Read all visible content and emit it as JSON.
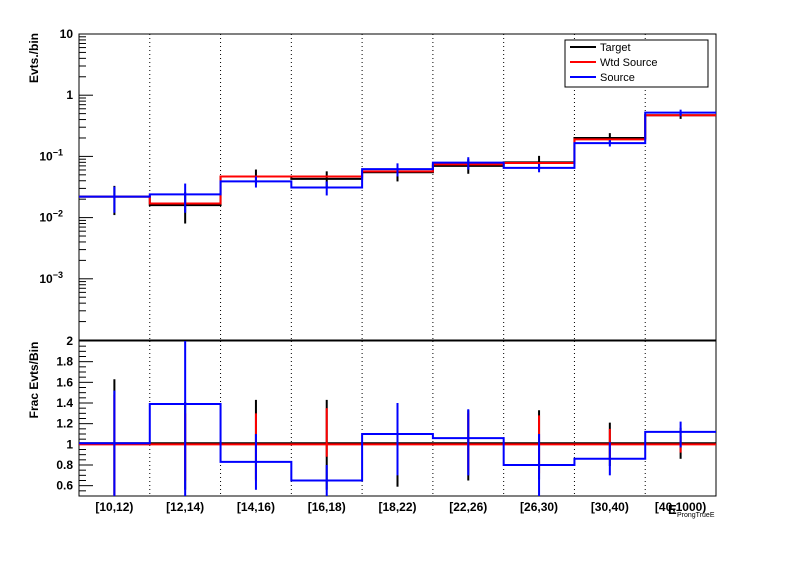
{
  "chart_data": [
    {
      "type": "line",
      "style": "step-histogram",
      "ylabel": "Evts./bin",
      "yscale": "log",
      "ylim": [
        0.0001,
        10
      ],
      "yticks": [
        {
          "value": 10,
          "label": "10"
        },
        {
          "value": 1,
          "label": "1"
        },
        {
          "value": 0.1,
          "label": "10",
          "exp": "−1"
        },
        {
          "value": 0.01,
          "label": "10",
          "exp": "−2"
        },
        {
          "value": 0.001,
          "label": "10",
          "exp": "−3"
        }
      ],
      "categories": [
        "[10,12)",
        "[12,14)",
        "[14,16)",
        "[16,18)",
        "[18,22)",
        "[22,26)",
        "[26,30)",
        "[30,40)",
        "[40,1000)"
      ],
      "legend_position": "top-right",
      "grid": "vertical dotted at bin edges",
      "series": [
        {
          "name": "Target",
          "color": "#000000",
          "values": [
            0.022,
            0.016,
            0.047,
            0.043,
            0.055,
            0.07,
            0.08,
            0.2,
            0.47
          ],
          "err_low": [
            0.011,
            0.008,
            0.012,
            0.013,
            0.016,
            0.018,
            0.02,
            0.04,
            0.06
          ],
          "err_high": [
            0.011,
            0.01,
            0.014,
            0.014,
            0.018,
            0.02,
            0.022,
            0.04,
            0.06
          ]
        },
        {
          "name": "Wtd Source",
          "color": "#ff0000",
          "values": [
            0.022,
            0.017,
            0.047,
            0.047,
            0.057,
            0.074,
            0.078,
            0.19,
            0.47
          ]
        },
        {
          "name": "Source",
          "color": "#0000ff",
          "values": [
            0.022,
            0.024,
            0.039,
            0.031,
            0.062,
            0.079,
            0.065,
            0.165,
            0.52
          ],
          "err_low": [
            0.01,
            0.012,
            0.008,
            0.008,
            0.015,
            0.018,
            0.01,
            0.02,
            0.06
          ],
          "err_high": [
            0.01,
            0.012,
            0.008,
            0.008,
            0.015,
            0.018,
            0.01,
            0.02,
            0.06
          ]
        }
      ]
    },
    {
      "type": "line",
      "style": "step-ratio",
      "ylabel": "Frac Evts/Bin",
      "xlabel": "E",
      "xlabel_sub": "ProngTrueE",
      "ylim": [
        0.5,
        2.0
      ],
      "yticks": [
        {
          "value": 2,
          "label": "2"
        },
        {
          "value": 1.8,
          "label": "1.8"
        },
        {
          "value": 1.6,
          "label": "1.6"
        },
        {
          "value": 1.4,
          "label": "1.4"
        },
        {
          "value": 1.2,
          "label": "1.2"
        },
        {
          "value": 1,
          "label": "1"
        },
        {
          "value": 0.8,
          "label": "0.8"
        },
        {
          "value": 0.6,
          "label": "0.6"
        }
      ],
      "categories": [
        "[10,12)",
        "[12,14)",
        "[14,16)",
        "[16,18)",
        "[18,22)",
        "[22,26)",
        "[26,30)",
        "[30,40)",
        "[40,1000)"
      ],
      "series": [
        {
          "name": "Target",
          "color": "#000000",
          "values": [
            1.01,
            1.01,
            1.01,
            1.01,
            1.01,
            1.01,
            1.01,
            1.01,
            1.01
          ],
          "err_low": [
            0.5,
            0.45,
            0.35,
            0.45,
            0.42,
            0.36,
            0.35,
            0.22,
            0.15
          ],
          "err_high": [
            0.62,
            0.4,
            0.42,
            0.42,
            0.35,
            0.32,
            0.32,
            0.2,
            0.15
          ]
        },
        {
          "name": "Wtd Source",
          "color": "#ff0000",
          "values": [
            1.0,
            1.0,
            1.0,
            1.0,
            1.0,
            1.0,
            1.0,
            1.0,
            1.0
          ],
          "err_low": [
            0.5,
            0.35,
            0.35,
            0.12,
            0.25,
            0.25,
            0.28,
            0.15,
            0.08
          ],
          "err_high": [
            0.48,
            0.3,
            0.3,
            0.35,
            0.28,
            0.3,
            0.28,
            0.15,
            0.08
          ]
        },
        {
          "name": "Source",
          "color": "#0000ff",
          "values": [
            1.01,
            1.39,
            0.83,
            0.65,
            1.1,
            1.06,
            0.8,
            0.86,
            1.12
          ],
          "err_low": [
            0.51,
            0.89,
            0.27,
            0.15,
            0.4,
            0.36,
            0.3,
            0.16,
            0.15
          ],
          "err_high": [
            0.51,
            0.61,
            0.27,
            0.15,
            0.3,
            0.28,
            0.3,
            0.16,
            0.1
          ]
        }
      ]
    }
  ]
}
